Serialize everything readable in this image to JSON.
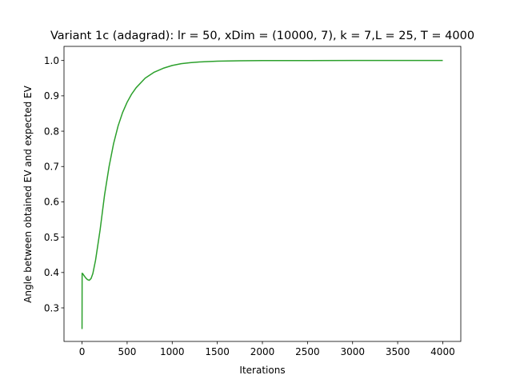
{
  "chart_data": {
    "type": "line",
    "title": "Variant 1c (adagrad): lr = 50, xDim = (10000, 7), k = 7,L = 25, T = 4000",
    "xlabel": "Iterations",
    "ylabel": "Angle between obtained EV and expected EV",
    "xlim": [
      -200,
      4200
    ],
    "ylim": [
      0.205,
      1.04
    ],
    "x_ticks": [
      0,
      500,
      1000,
      1500,
      2000,
      2500,
      3000,
      3500,
      4000
    ],
    "y_ticks": [
      0.3,
      0.4,
      0.5,
      0.6,
      0.7,
      0.8,
      0.9,
      1.0
    ],
    "grid": false,
    "legend": "none",
    "series": [
      {
        "color": "#2ca02c",
        "x": [
          0,
          1,
          10,
          20,
          40,
          60,
          80,
          100,
          120,
          150,
          200,
          250,
          300,
          350,
          400,
          450,
          500,
          550,
          600,
          700,
          800,
          900,
          1000,
          1100,
          1200,
          1300,
          1400,
          1500,
          1750,
          2000,
          2500,
          3000,
          3500,
          4000
        ],
        "y": [
          0.24,
          0.398,
          0.396,
          0.392,
          0.385,
          0.38,
          0.378,
          0.383,
          0.397,
          0.435,
          0.52,
          0.62,
          0.7,
          0.765,
          0.815,
          0.853,
          0.882,
          0.905,
          0.923,
          0.95,
          0.967,
          0.978,
          0.986,
          0.991,
          0.994,
          0.996,
          0.997,
          0.998,
          0.9993,
          0.9997,
          0.9999,
          1.0,
          1.0,
          1.0
        ]
      }
    ]
  }
}
